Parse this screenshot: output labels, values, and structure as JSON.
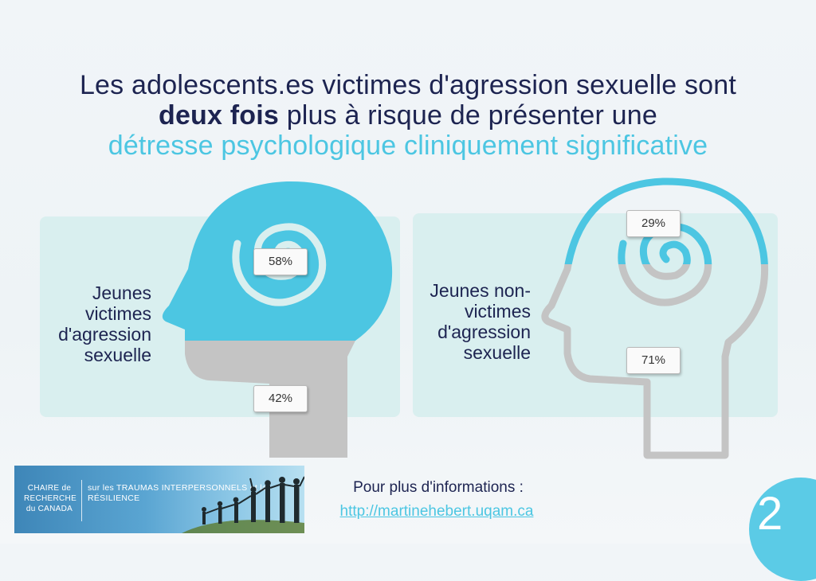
{
  "title": {
    "line1": "Les adolescents.es victimes d'agression sexuelle sont",
    "line2_bold": "deux fois",
    "line2_rest": " plus à risque de présenter une",
    "line3": "détresse psychologique cliniquement significative"
  },
  "groups": [
    {
      "label": "Jeunes victimes d'agression sexuelle",
      "above_pct": "58%",
      "below_pct": "42%"
    },
    {
      "label": "Jeunes non-victimes d'agression sexuelle",
      "above_pct": "29%",
      "below_pct": "71%"
    }
  ],
  "colors": {
    "accent": "#4cc6e2",
    "grey": "#c4c4c4",
    "title": "#1d2451",
    "panel": "#d9efef"
  },
  "logo": {
    "left_text": "CHAIRE de RECHERCHE du CANADA",
    "right_text": "sur les TRAUMAS INTERPERSONNELS et la RÉSILIENCE"
  },
  "info": {
    "title": "Pour plus d'informations :",
    "link": "http://martinehebert.uqam.ca"
  },
  "page_number": "2"
}
